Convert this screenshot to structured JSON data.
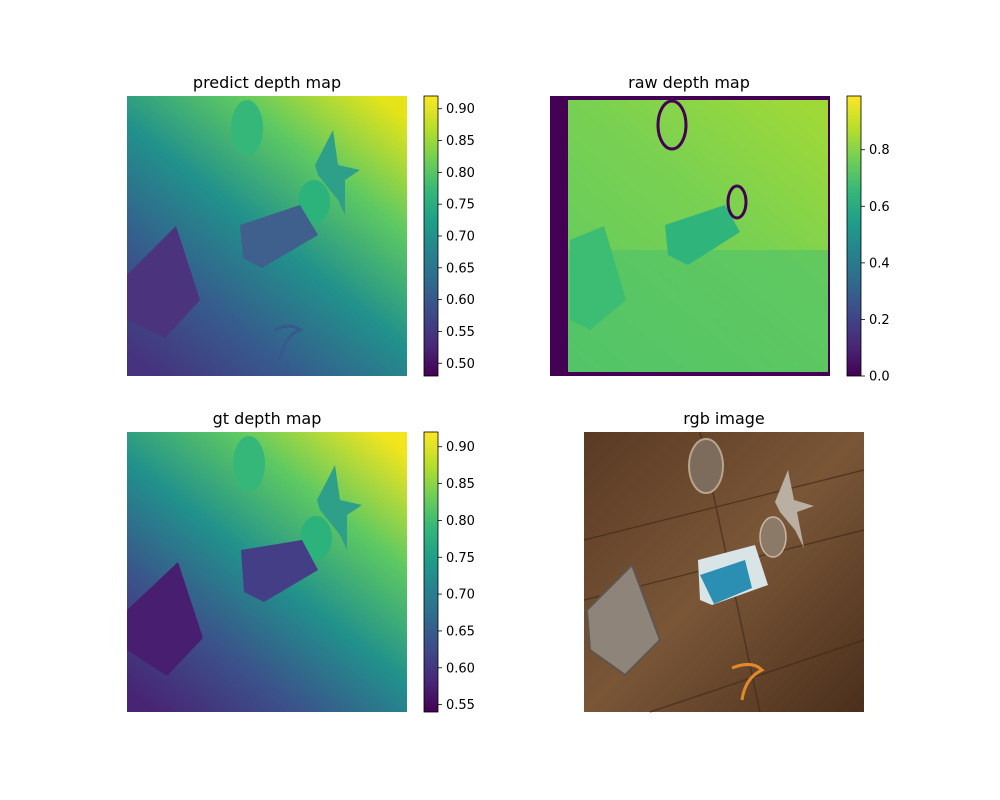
{
  "chart_data": [
    {
      "type": "heatmap",
      "title": "predict depth map",
      "colormap": "viridis",
      "colorbar": {
        "range": [
          0.48,
          0.92
        ],
        "ticks": [
          "0.90",
          "0.85",
          "0.80",
          "0.75",
          "0.70",
          "0.65",
          "0.60",
          "0.55",
          "0.50"
        ],
        "tick_values": [
          0.9,
          0.85,
          0.8,
          0.75,
          0.7,
          0.65,
          0.6,
          0.55,
          0.5
        ]
      },
      "axes": "off"
    },
    {
      "type": "heatmap",
      "title": "raw depth map",
      "colormap": "viridis",
      "colorbar": {
        "range": [
          0.0,
          0.99
        ],
        "ticks": [
          "0.8",
          "0.6",
          "0.4",
          "0.2",
          "0.0"
        ],
        "tick_values": [
          0.8,
          0.6,
          0.4,
          0.2,
          0.0
        ]
      },
      "axes": "off"
    },
    {
      "type": "heatmap",
      "title": "gt depth map",
      "colormap": "viridis",
      "colorbar": {
        "range": [
          0.54,
          0.92
        ],
        "ticks": [
          "0.90",
          "0.85",
          "0.80",
          "0.75",
          "0.70",
          "0.65",
          "0.60",
          "0.55"
        ],
        "tick_values": [
          0.9,
          0.85,
          0.8,
          0.75,
          0.7,
          0.65,
          0.6,
          0.55
        ]
      },
      "axes": "off"
    },
    {
      "type": "image",
      "title": "rgb image",
      "axes": "off"
    }
  ],
  "colors": {
    "viridis": [
      "#440154",
      "#482878",
      "#3e4989",
      "#31688e",
      "#26828e",
      "#1f9e89",
      "#35b779",
      "#6ece58",
      "#b5de2b",
      "#fde725"
    ],
    "wood_dark": "#4a2f1c",
    "wood_mid": "#6b4a30",
    "wood_light": "#8a6544"
  }
}
